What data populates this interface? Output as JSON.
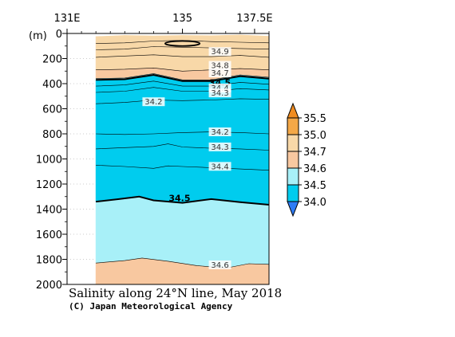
{
  "chart_data": {
    "type": "heatmap",
    "title": "Salinity along 24°N line, May 2018",
    "credit": "(C) Japan Meteorological Agency",
    "y_unit_label": "(m)",
    "x_ticks": [
      {
        "lon": 131,
        "label": "131E"
      },
      {
        "lon": 135,
        "label": "135"
      },
      {
        "lon": 137.5,
        "label": "137.5E"
      }
    ],
    "xlim": [
      131,
      138
    ],
    "data_x_range": [
      132,
      138
    ],
    "ylim": [
      0,
      2000
    ],
    "y_ticks": [
      0,
      200,
      400,
      600,
      800,
      1000,
      1200,
      1400,
      1600,
      1800,
      2000
    ],
    "colorbar": {
      "levels": [
        34.0,
        34.5,
        34.6,
        34.7,
        35.0,
        35.5
      ],
      "labels": [
        "34.0",
        "34.5",
        "34.6",
        "34.7",
        "35.0",
        "35.5"
      ],
      "fill_colors": [
        "#00ccee",
        "#a8f0f8",
        "#f8c8a0",
        "#f8d8a8",
        "#f4a848"
      ],
      "under_color": "#2e7cf6",
      "over_color": "#f08c20"
    },
    "regions": [
      {
        "name": "salinity >= 34.7 (upper layer)",
        "color": "#f8d8a8",
        "top": [
          [
            132,
            25
          ],
          [
            133,
            15
          ],
          [
            134,
            20
          ],
          [
            135,
            15
          ],
          [
            136,
            18
          ],
          [
            137,
            12
          ],
          [
            138,
            22
          ]
        ],
        "bottom": [
          [
            132,
            290
          ],
          [
            133,
            285
          ],
          [
            134,
            275
          ],
          [
            135,
            300
          ],
          [
            136,
            290
          ],
          [
            137,
            280
          ],
          [
            138,
            290
          ]
        ]
      },
      {
        "name": "34.6 - 34.7",
        "color": "#f8c8a0",
        "top": [
          [
            132,
            290
          ],
          [
            133,
            285
          ],
          [
            134,
            275
          ],
          [
            135,
            300
          ],
          [
            136,
            290
          ],
          [
            137,
            280
          ],
          [
            138,
            290
          ]
        ],
        "bottom": [
          [
            132,
            360
          ],
          [
            133,
            355
          ],
          [
            134,
            320
          ],
          [
            135,
            370
          ],
          [
            136,
            370
          ],
          [
            137,
            330
          ],
          [
            138,
            350
          ]
        ]
      },
      {
        "name": "34.5 - 34.6 (transition)",
        "color": "#a8f0f8",
        "top": [
          [
            132,
            360
          ],
          [
            133,
            355
          ],
          [
            134,
            320
          ],
          [
            135,
            370
          ],
          [
            136,
            370
          ],
          [
            137,
            330
          ],
          [
            138,
            350
          ]
        ],
        "bottom": [
          [
            132,
            370
          ],
          [
            133,
            365
          ],
          [
            134,
            330
          ],
          [
            135,
            380
          ],
          [
            136,
            380
          ],
          [
            137,
            340
          ],
          [
            138,
            360
          ]
        ]
      },
      {
        "name": "34.0 - 34.5 (intermediate water)",
        "color": "#00ccee",
        "top": [
          [
            132,
            370
          ],
          [
            133,
            365
          ],
          [
            134,
            330
          ],
          [
            135,
            380
          ],
          [
            136,
            380
          ],
          [
            137,
            340
          ],
          [
            138,
            360
          ]
        ],
        "bottom": [
          [
            132,
            1340
          ],
          [
            132.8,
            1320
          ],
          [
            133.5,
            1300
          ],
          [
            134,
            1330
          ],
          [
            135,
            1350
          ],
          [
            136,
            1320
          ],
          [
            137,
            1345
          ],
          [
            138,
            1365
          ]
        ]
      },
      {
        "name": "34.5 - 34.6 (deep)",
        "color": "#a8f0f8",
        "top": [
          [
            132,
            1340
          ],
          [
            132.8,
            1320
          ],
          [
            133.5,
            1300
          ],
          [
            134,
            1330
          ],
          [
            135,
            1350
          ],
          [
            136,
            1320
          ],
          [
            137,
            1345
          ],
          [
            138,
            1365
          ]
        ],
        "bottom": [
          [
            132,
            1830
          ],
          [
            133,
            1810
          ],
          [
            133.6,
            1790
          ],
          [
            134.5,
            1815
          ],
          [
            135.5,
            1850
          ],
          [
            136.5,
            1870
          ],
          [
            137.3,
            1835
          ],
          [
            138,
            1840
          ]
        ]
      },
      {
        "name": "34.6 - 34.7 (bottom)",
        "color": "#f8c8a0",
        "top": [
          [
            132,
            1830
          ],
          [
            133,
            1810
          ],
          [
            133.6,
            1790
          ],
          [
            134.5,
            1815
          ],
          [
            135.5,
            1850
          ],
          [
            136.5,
            1870
          ],
          [
            137.3,
            1835
          ],
          [
            138,
            1840
          ]
        ],
        "bottom": [
          [
            132,
            2000
          ],
          [
            138,
            2000
          ]
        ]
      }
    ],
    "contours": [
      {
        "level": 34.9,
        "points": [
          [
            132,
            80
          ],
          [
            133,
            75
          ],
          [
            134,
            60
          ],
          [
            135,
            55
          ],
          [
            136,
            65
          ],
          [
            137,
            70
          ],
          [
            138,
            75
          ]
        ]
      },
      {
        "level": 34.9,
        "points": [
          [
            132,
            130
          ],
          [
            133,
            125
          ],
          [
            134,
            105
          ],
          [
            135,
            110
          ],
          [
            136,
            115
          ],
          [
            137,
            120
          ],
          [
            138,
            125
          ]
        ]
      },
      {
        "level": 34.8,
        "points": [
          [
            132,
            190
          ],
          [
            133,
            180
          ],
          [
            134,
            170
          ],
          [
            135,
            185
          ],
          [
            136,
            185
          ],
          [
            137,
            175
          ],
          [
            138,
            190
          ]
        ]
      },
      {
        "level": 34.7,
        "points": [
          [
            132,
            290
          ],
          [
            133,
            285
          ],
          [
            134,
            275
          ],
          [
            135,
            300
          ],
          [
            136,
            290
          ],
          [
            137,
            280
          ],
          [
            138,
            290
          ]
        ]
      },
      {
        "level": 34.6,
        "points": [
          [
            132,
            360
          ],
          [
            133,
            355
          ],
          [
            134,
            320
          ],
          [
            135,
            370
          ],
          [
            136,
            370
          ],
          [
            137,
            330
          ],
          [
            138,
            350
          ]
        ]
      },
      {
        "level": 34.5,
        "points": [
          [
            132,
            370
          ],
          [
            133,
            365
          ],
          [
            134,
            330
          ],
          [
            135,
            380
          ],
          [
            136,
            380
          ],
          [
            137,
            340
          ],
          [
            138,
            360
          ]
        ]
      },
      {
        "level": 34.4,
        "points": [
          [
            132,
            420
          ],
          [
            133,
            410
          ],
          [
            134,
            380
          ],
          [
            135,
            420
          ],
          [
            136,
            420
          ],
          [
            137,
            390
          ],
          [
            138,
            405
          ]
        ]
      },
      {
        "level": 34.3,
        "points": [
          [
            132,
            470
          ],
          [
            133,
            460
          ],
          [
            134,
            430
          ],
          [
            135,
            460
          ],
          [
            136,
            460
          ],
          [
            137,
            440
          ],
          [
            138,
            450
          ]
        ]
      },
      {
        "level": 34.2,
        "points": [
          [
            132,
            560
          ],
          [
            133,
            550
          ],
          [
            134,
            530
          ],
          [
            135,
            535
          ],
          [
            136,
            530
          ],
          [
            137,
            520
          ],
          [
            138,
            525
          ]
        ]
      },
      {
        "level": 34.2,
        "points": [
          [
            132,
            800
          ],
          [
            133,
            805
          ],
          [
            134,
            800
          ],
          [
            135,
            790
          ],
          [
            136,
            785
          ],
          [
            137,
            790
          ],
          [
            138,
            800
          ]
        ]
      },
      {
        "level": 34.3,
        "points": [
          [
            132,
            920
          ],
          [
            133,
            910
          ],
          [
            134,
            900
          ],
          [
            134.5,
            880
          ],
          [
            135,
            905
          ],
          [
            136,
            915
          ],
          [
            137,
            920
          ],
          [
            138,
            930
          ]
        ]
      },
      {
        "level": 34.4,
        "points": [
          [
            132,
            1050
          ],
          [
            133,
            1060
          ],
          [
            134,
            1075
          ],
          [
            134.5,
            1055
          ],
          [
            135,
            1060
          ],
          [
            136,
            1070
          ],
          [
            137,
            1080
          ],
          [
            138,
            1090
          ]
        ]
      },
      {
        "level": 34.5,
        "points": [
          [
            132,
            1340
          ],
          [
            132.8,
            1320
          ],
          [
            133.5,
            1300
          ],
          [
            134,
            1330
          ],
          [
            135,
            1350
          ],
          [
            136,
            1320
          ],
          [
            137,
            1345
          ],
          [
            138,
            1365
          ]
        ]
      },
      {
        "level": 34.6,
        "points": [
          [
            132,
            1830
          ],
          [
            133,
            1810
          ],
          [
            133.6,
            1790
          ],
          [
            134.5,
            1815
          ],
          [
            135.5,
            1850
          ],
          [
            136.5,
            1870
          ],
          [
            137.3,
            1835
          ],
          [
            138,
            1840
          ]
        ]
      }
    ],
    "closed_contour": {
      "level": 34.9,
      "center": [
        135,
        80
      ],
      "rx": 0.6,
      "ry": 20
    },
    "contour_labels": [
      {
        "text": "34.9",
        "lon": 136.3,
        "depth": 160,
        "bold": false
      },
      {
        "text": "34.8",
        "lon": 136.3,
        "depth": 270,
        "bold": false
      },
      {
        "text": "34.7",
        "lon": 136.3,
        "depth": 330,
        "bold": false
      },
      {
        "text": "34.5",
        "lon": 136.3,
        "depth": 410,
        "bold": true
      },
      {
        "text": "34.4",
        "lon": 136.3,
        "depth": 450,
        "bold": false
      },
      {
        "text": "34.3",
        "lon": 136.3,
        "depth": 490,
        "bold": false
      },
      {
        "text": "34.2",
        "lon": 134.0,
        "depth": 560,
        "bold": false
      },
      {
        "text": "34.2",
        "lon": 136.3,
        "depth": 800,
        "bold": false
      },
      {
        "text": "34.3",
        "lon": 136.3,
        "depth": 920,
        "bold": false
      },
      {
        "text": "34.4",
        "lon": 136.3,
        "depth": 1075,
        "bold": false
      },
      {
        "text": "34.5",
        "lon": 134.9,
        "depth": 1330,
        "bold": true
      },
      {
        "text": "34.6",
        "lon": 136.3,
        "depth": 1860,
        "bold": false
      }
    ]
  }
}
